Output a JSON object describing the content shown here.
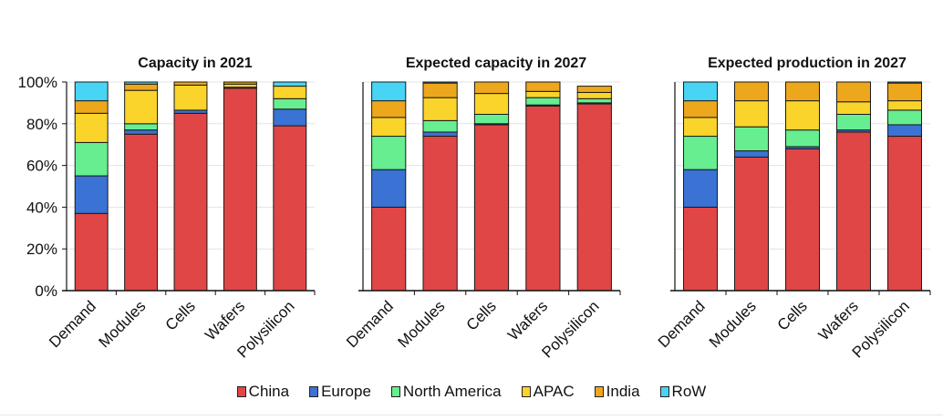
{
  "chart_data": [
    {
      "type": "bar",
      "stacked": true,
      "title": "Capacity in 2021",
      "categories": [
        "Demand",
        "Modules",
        "Cells",
        "Wafers",
        "Polysilicon"
      ],
      "ylim": [
        0,
        100
      ],
      "yticks": [
        "0%",
        "20%",
        "40%",
        "60%",
        "80%",
        "100%"
      ],
      "series": [
        {
          "name": "China",
          "values": [
            37,
            75,
            85,
            97,
            79
          ]
        },
        {
          "name": "Europe",
          "values": [
            18,
            2,
            1.5,
            0.5,
            8
          ]
        },
        {
          "name": "North America",
          "values": [
            16,
            3,
            0,
            0,
            5
          ]
        },
        {
          "name": "APAC",
          "values": [
            14,
            16,
            12,
            1.5,
            6
          ]
        },
        {
          "name": "India",
          "values": [
            6,
            3,
            1.5,
            1,
            0
          ]
        },
        {
          "name": "RoW",
          "values": [
            9,
            1,
            0,
            0,
            2
          ]
        }
      ]
    },
    {
      "type": "bar",
      "stacked": true,
      "title": "Expected capacity in 2027",
      "categories": [
        "Demand",
        "Modules",
        "Cells",
        "Wafers",
        "Polysilicon"
      ],
      "ylim": [
        0,
        100
      ],
      "yticks": [],
      "series": [
        {
          "name": "China",
          "values": [
            40,
            74,
            79.5,
            88.5,
            89.5
          ]
        },
        {
          "name": "Europe",
          "values": [
            18,
            2,
            0.5,
            0.5,
            0.5
          ]
        },
        {
          "name": "North America",
          "values": [
            16,
            5.5,
            4.5,
            3.5,
            2
          ]
        },
        {
          "name": "APAC",
          "values": [
            9,
            11,
            10,
            3,
            3
          ]
        },
        {
          "name": "India",
          "values": [
            8,
            7,
            5.5,
            4.5,
            3
          ]
        },
        {
          "name": "RoW",
          "values": [
            9,
            0.5,
            0,
            0,
            0
          ]
        }
      ]
    },
    {
      "type": "bar",
      "stacked": true,
      "title": "Expected production in 2027",
      "categories": [
        "Demand",
        "Modules",
        "Cells",
        "Wafers",
        "Polysilicon"
      ],
      "ylim": [
        0,
        100
      ],
      "yticks": [],
      "series": [
        {
          "name": "China",
          "values": [
            40,
            64,
            68,
            76,
            74
          ]
        },
        {
          "name": "Europe",
          "values": [
            18,
            3,
            1,
            1,
            5.5
          ]
        },
        {
          "name": "North America",
          "values": [
            16,
            11.5,
            8,
            7.5,
            7
          ]
        },
        {
          "name": "APAC",
          "values": [
            9,
            12.5,
            14,
            6,
            4.5
          ]
        },
        {
          "name": "India",
          "values": [
            8,
            9,
            9,
            9.5,
            8.5
          ]
        },
        {
          "name": "RoW",
          "values": [
            9,
            0,
            0,
            0,
            0.5
          ]
        }
      ]
    }
  ],
  "legend": [
    {
      "label": "China",
      "color": "#e04646"
    },
    {
      "label": "Europe",
      "color": "#3a73d4"
    },
    {
      "label": "North America",
      "color": "#66ee90"
    },
    {
      "label": "APAC",
      "color": "#fad42a"
    },
    {
      "label": "India",
      "color": "#eda71c"
    },
    {
      "label": "RoW",
      "color": "#48d4f4"
    }
  ]
}
